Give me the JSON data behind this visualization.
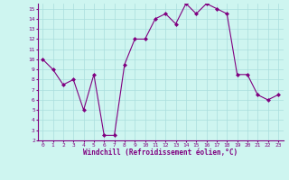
{
  "x": [
    0,
    1,
    2,
    3,
    4,
    5,
    6,
    7,
    8,
    9,
    10,
    11,
    12,
    13,
    14,
    15,
    16,
    17,
    18,
    19,
    20,
    21,
    22,
    23
  ],
  "y": [
    10,
    9,
    7.5,
    8,
    5,
    8.5,
    2.5,
    2.5,
    9.5,
    12,
    12,
    14,
    14.5,
    13.5,
    15.5,
    14.5,
    15.5,
    15,
    14.5,
    8.5,
    8.5,
    6.5,
    6,
    6.5
  ],
  "line_color": "#800080",
  "marker": "D",
  "marker_size": 2,
  "bg_color": "#cef5f0",
  "grid_color": "#aadddd",
  "xlabel": "Windchill (Refroidissement éolien,°C)",
  "xlabel_color": "#800080",
  "tick_color": "#800080",
  "xlim": [
    -0.5,
    23.5
  ],
  "ylim": [
    2,
    15.5
  ],
  "yticks": [
    2,
    3,
    4,
    5,
    6,
    7,
    8,
    9,
    10,
    11,
    12,
    13,
    14,
    15
  ],
  "xticks": [
    0,
    1,
    2,
    3,
    4,
    5,
    6,
    7,
    8,
    9,
    10,
    11,
    12,
    13,
    14,
    15,
    16,
    17,
    18,
    19,
    20,
    21,
    22,
    23
  ],
  "tick_fontsize": 4.5,
  "xlabel_fontsize": 5.5
}
